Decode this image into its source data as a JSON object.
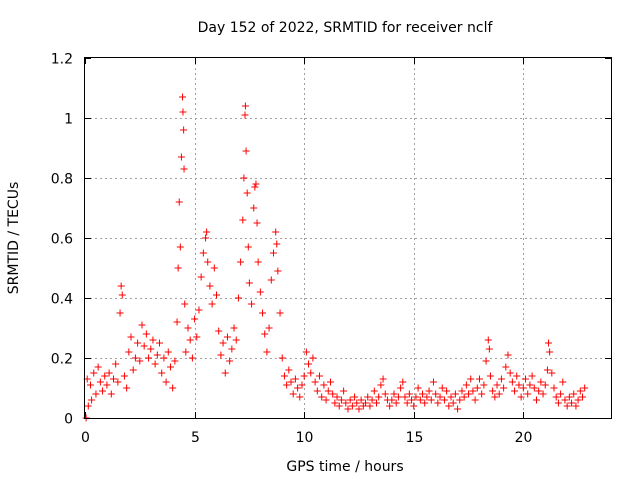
{
  "chart_data": {
    "type": "scatter",
    "title": "Day 152 of 2022, SRMTID for receiver nclf",
    "xlabel": "GPS time / hours",
    "ylabel": "SRMTID / TECUs",
    "xlim": [
      0,
      24
    ],
    "ylim": [
      0,
      1.2
    ],
    "xticks": [
      0,
      5,
      10,
      15,
      20
    ],
    "xtick_labels": [
      "0",
      "5",
      "10",
      "15",
      "20"
    ],
    "yticks": [
      0,
      0.2,
      0.4,
      0.6,
      0.8,
      1,
      1.2
    ],
    "ytick_labels": [
      "0",
      "0.2",
      "0.4",
      "0.6",
      "0.8",
      "1",
      "1.2"
    ],
    "grid": true,
    "marker": "+",
    "color": "#ff0000",
    "series": [
      {
        "name": "SRMTID",
        "points": [
          [
            0.05,
            0.0
          ],
          [
            0.1,
            0.13
          ],
          [
            0.15,
            0.04
          ],
          [
            0.25,
            0.11
          ],
          [
            0.3,
            0.06
          ],
          [
            0.4,
            0.15
          ],
          [
            0.5,
            0.08
          ],
          [
            0.6,
            0.17
          ],
          [
            0.7,
            0.12
          ],
          [
            0.8,
            0.09
          ],
          [
            0.9,
            0.14
          ],
          [
            1.0,
            0.11
          ],
          [
            1.1,
            0.15
          ],
          [
            1.2,
            0.08
          ],
          [
            1.3,
            0.13
          ],
          [
            1.4,
            0.18
          ],
          [
            1.5,
            0.12
          ],
          [
            1.6,
            0.35
          ],
          [
            1.65,
            0.44
          ],
          [
            1.7,
            0.41
          ],
          [
            1.8,
            0.14
          ],
          [
            1.9,
            0.1
          ],
          [
            2.0,
            0.22
          ],
          [
            2.1,
            0.27
          ],
          [
            2.2,
            0.16
          ],
          [
            2.3,
            0.2
          ],
          [
            2.4,
            0.25
          ],
          [
            2.5,
            0.19
          ],
          [
            2.6,
            0.31
          ],
          [
            2.7,
            0.24
          ],
          [
            2.8,
            0.28
          ],
          [
            2.9,
            0.2
          ],
          [
            3.0,
            0.23
          ],
          [
            3.1,
            0.26
          ],
          [
            3.2,
            0.18
          ],
          [
            3.3,
            0.21
          ],
          [
            3.4,
            0.25
          ],
          [
            3.5,
            0.15
          ],
          [
            3.6,
            0.2
          ],
          [
            3.7,
            0.12
          ],
          [
            3.8,
            0.22
          ],
          [
            3.9,
            0.17
          ],
          [
            4.0,
            0.1
          ],
          [
            4.1,
            0.19
          ],
          [
            4.2,
            0.32
          ],
          [
            4.25,
            0.5
          ],
          [
            4.3,
            0.72
          ],
          [
            4.35,
            0.57
          ],
          [
            4.4,
            0.87
          ],
          [
            4.45,
            1.07
          ],
          [
            4.47,
            1.02
          ],
          [
            4.5,
            0.96
          ],
          [
            4.52,
            0.83
          ],
          [
            4.55,
            0.38
          ],
          [
            4.6,
            0.22
          ],
          [
            4.7,
            0.3
          ],
          [
            4.8,
            0.26
          ],
          [
            4.9,
            0.2
          ],
          [
            5.0,
            0.33
          ],
          [
            5.1,
            0.27
          ],
          [
            5.2,
            0.36
          ],
          [
            5.3,
            0.47
          ],
          [
            5.4,
            0.55
          ],
          [
            5.5,
            0.6
          ],
          [
            5.55,
            0.62
          ],
          [
            5.6,
            0.52
          ],
          [
            5.7,
            0.44
          ],
          [
            5.8,
            0.38
          ],
          [
            5.9,
            0.5
          ],
          [
            6.0,
            0.41
          ],
          [
            6.1,
            0.29
          ],
          [
            6.2,
            0.21
          ],
          [
            6.3,
            0.25
          ],
          [
            6.4,
            0.15
          ],
          [
            6.5,
            0.27
          ],
          [
            6.6,
            0.19
          ],
          [
            6.7,
            0.23
          ],
          [
            6.8,
            0.3
          ],
          [
            6.9,
            0.26
          ],
          [
            7.0,
            0.4
          ],
          [
            7.1,
            0.52
          ],
          [
            7.2,
            0.66
          ],
          [
            7.25,
            0.8
          ],
          [
            7.3,
            1.01
          ],
          [
            7.32,
            1.04
          ],
          [
            7.35,
            0.89
          ],
          [
            7.4,
            0.75
          ],
          [
            7.45,
            0.57
          ],
          [
            7.5,
            0.45
          ],
          [
            7.6,
            0.38
          ],
          [
            7.7,
            0.7
          ],
          [
            7.75,
            0.77
          ],
          [
            7.8,
            0.78
          ],
          [
            7.85,
            0.65
          ],
          [
            7.9,
            0.52
          ],
          [
            8.0,
            0.42
          ],
          [
            8.1,
            0.35
          ],
          [
            8.2,
            0.28
          ],
          [
            8.3,
            0.22
          ],
          [
            8.4,
            0.3
          ],
          [
            8.5,
            0.46
          ],
          [
            8.6,
            0.55
          ],
          [
            8.7,
            0.62
          ],
          [
            8.75,
            0.58
          ],
          [
            8.8,
            0.49
          ],
          [
            8.9,
            0.35
          ],
          [
            9.0,
            0.2
          ],
          [
            9.1,
            0.14
          ],
          [
            9.2,
            0.11
          ],
          [
            9.3,
            0.16
          ],
          [
            9.4,
            0.12
          ],
          [
            9.5,
            0.08
          ],
          [
            9.6,
            0.13
          ],
          [
            9.7,
            0.1
          ],
          [
            9.8,
            0.07
          ],
          [
            9.9,
            0.11
          ],
          [
            10.0,
            0.14
          ],
          [
            10.1,
            0.22
          ],
          [
            10.2,
            0.18
          ],
          [
            10.3,
            0.15
          ],
          [
            10.4,
            0.2
          ],
          [
            10.5,
            0.12
          ],
          [
            10.6,
            0.09
          ],
          [
            10.7,
            0.14
          ],
          [
            10.8,
            0.07
          ],
          [
            10.9,
            0.11
          ],
          [
            11.0,
            0.06
          ],
          [
            11.1,
            0.09
          ],
          [
            11.2,
            0.12
          ],
          [
            11.3,
            0.08
          ],
          [
            11.4,
            0.05
          ],
          [
            11.5,
            0.07
          ],
          [
            11.6,
            0.04
          ],
          [
            11.7,
            0.06
          ],
          [
            11.8,
            0.09
          ],
          [
            11.9,
            0.05
          ],
          [
            12.0,
            0.03
          ],
          [
            12.1,
            0.06
          ],
          [
            12.2,
            0.04
          ],
          [
            12.3,
            0.07
          ],
          [
            12.4,
            0.05
          ],
          [
            12.5,
            0.03
          ],
          [
            12.6,
            0.06
          ],
          [
            12.7,
            0.04
          ],
          [
            12.8,
            0.05
          ],
          [
            12.9,
            0.07
          ],
          [
            13.0,
            0.04
          ],
          [
            13.1,
            0.06
          ],
          [
            13.2,
            0.09
          ],
          [
            13.3,
            0.05
          ],
          [
            13.4,
            0.07
          ],
          [
            13.5,
            0.11
          ],
          [
            13.6,
            0.13
          ],
          [
            13.7,
            0.08
          ],
          [
            13.8,
            0.06
          ],
          [
            13.9,
            0.04
          ],
          [
            14.0,
            0.06
          ],
          [
            14.1,
            0.08
          ],
          [
            14.2,
            0.05
          ],
          [
            14.3,
            0.07
          ],
          [
            14.4,
            0.1
          ],
          [
            14.5,
            0.12
          ],
          [
            14.6,
            0.07
          ],
          [
            14.7,
            0.05
          ],
          [
            14.8,
            0.08
          ],
          [
            14.9,
            0.06
          ],
          [
            15.0,
            0.04
          ],
          [
            15.1,
            0.07
          ],
          [
            15.2,
            0.1
          ],
          [
            15.3,
            0.06
          ],
          [
            15.4,
            0.08
          ],
          [
            15.5,
            0.05
          ],
          [
            15.6,
            0.07
          ],
          [
            15.7,
            0.09
          ],
          [
            15.8,
            0.06
          ],
          [
            15.9,
            0.12
          ],
          [
            16.0,
            0.08
          ],
          [
            16.1,
            0.05
          ],
          [
            16.2,
            0.07
          ],
          [
            16.3,
            0.1
          ],
          [
            16.4,
            0.06
          ],
          [
            16.5,
            0.09
          ],
          [
            16.6,
            0.04
          ],
          [
            16.7,
            0.07
          ],
          [
            16.8,
            0.05
          ],
          [
            16.9,
            0.08
          ],
          [
            17.0,
            0.03
          ],
          [
            17.1,
            0.06
          ],
          [
            17.2,
            0.09
          ],
          [
            17.3,
            0.07
          ],
          [
            17.4,
            0.11
          ],
          [
            17.5,
            0.08
          ],
          [
            17.6,
            0.13
          ],
          [
            17.7,
            0.09
          ],
          [
            17.8,
            0.06
          ],
          [
            17.9,
            0.1
          ],
          [
            18.0,
            0.13
          ],
          [
            18.1,
            0.08
          ],
          [
            18.2,
            0.11
          ],
          [
            18.3,
            0.19
          ],
          [
            18.4,
            0.26
          ],
          [
            18.45,
            0.23
          ],
          [
            18.5,
            0.14
          ],
          [
            18.6,
            0.09
          ],
          [
            18.7,
            0.07
          ],
          [
            18.8,
            0.11
          ],
          [
            18.9,
            0.08
          ],
          [
            19.0,
            0.13
          ],
          [
            19.1,
            0.1
          ],
          [
            19.2,
            0.17
          ],
          [
            19.3,
            0.21
          ],
          [
            19.4,
            0.15
          ],
          [
            19.5,
            0.12
          ],
          [
            19.6,
            0.09
          ],
          [
            19.7,
            0.14
          ],
          [
            19.8,
            0.11
          ],
          [
            19.9,
            0.07
          ],
          [
            20.0,
            0.1
          ],
          [
            20.1,
            0.13
          ],
          [
            20.2,
            0.08
          ],
          [
            20.3,
            0.11
          ],
          [
            20.4,
            0.14
          ],
          [
            20.5,
            0.1
          ],
          [
            20.6,
            0.06
          ],
          [
            20.7,
            0.09
          ],
          [
            20.8,
            0.12
          ],
          [
            20.9,
            0.08
          ],
          [
            21.0,
            0.11
          ],
          [
            21.1,
            0.16
          ],
          [
            21.15,
            0.25
          ],
          [
            21.2,
            0.22
          ],
          [
            21.3,
            0.15
          ],
          [
            21.4,
            0.1
          ],
          [
            21.5,
            0.07
          ],
          [
            21.6,
            0.05
          ],
          [
            21.7,
            0.08
          ],
          [
            21.8,
            0.12
          ],
          [
            21.9,
            0.06
          ],
          [
            22.0,
            0.04
          ],
          [
            22.1,
            0.07
          ],
          [
            22.2,
            0.05
          ],
          [
            22.3,
            0.08
          ],
          [
            22.4,
            0.04
          ],
          [
            22.5,
            0.06
          ],
          [
            22.6,
            0.09
          ],
          [
            22.7,
            0.07
          ],
          [
            22.8,
            0.1
          ]
        ]
      }
    ]
  }
}
